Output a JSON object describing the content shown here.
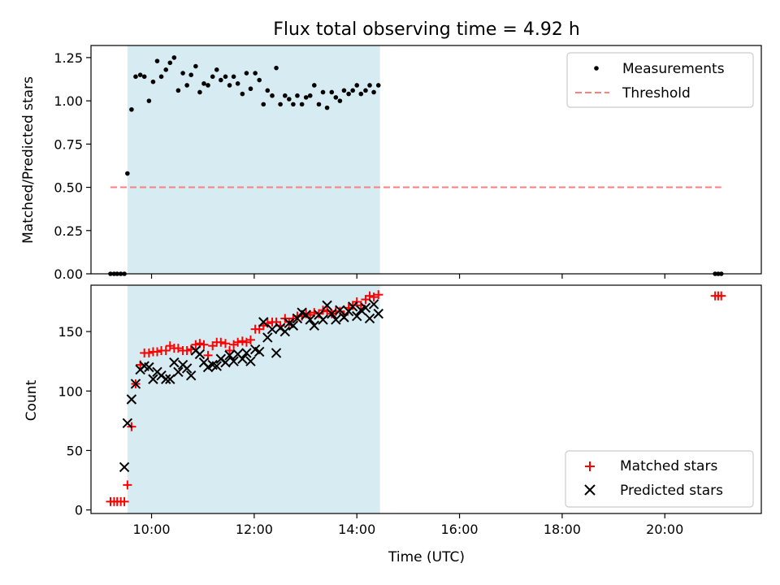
{
  "chart_data": [
    {
      "type": "scatter",
      "title": "Flux total observing time = 4.92 h",
      "ylabel": "Matched/Predicted stars",
      "xlabel": "",
      "ylim": [
        0,
        1.32
      ],
      "yticks": [
        0.0,
        0.25,
        0.5,
        0.75,
        1.0,
        1.25
      ],
      "ytick_labels": [
        "0.00",
        "0.25",
        "0.50",
        "0.75",
        "1.00",
        "1.25"
      ],
      "xlim": [
        8.82,
        21.88
      ],
      "xticks": [
        10,
        12,
        14,
        16,
        18,
        20
      ],
      "highlight_span": [
        9.53,
        14.45
      ],
      "legend_position": "upper right",
      "series": [
        {
          "name": "Measurements",
          "marker": "dot",
          "color": "#000000",
          "x": [
            9.2,
            9.27,
            9.33,
            9.4,
            9.47,
            9.53,
            9.61,
            9.69,
            9.78,
            9.86,
            9.95,
            10.03,
            10.11,
            10.19,
            10.28,
            10.36,
            10.44,
            10.52,
            10.61,
            10.69,
            10.77,
            10.86,
            10.94,
            11.02,
            11.1,
            11.19,
            11.27,
            11.35,
            11.44,
            11.52,
            11.6,
            11.68,
            11.77,
            11.85,
            11.93,
            12.02,
            12.1,
            12.18,
            12.26,
            12.35,
            12.43,
            12.51,
            12.6,
            12.68,
            12.76,
            12.84,
            12.93,
            13.01,
            13.09,
            13.17,
            13.26,
            13.34,
            13.42,
            13.51,
            13.59,
            13.67,
            13.75,
            13.84,
            13.92,
            14.0,
            14.08,
            14.17,
            14.25,
            14.33,
            14.42,
            20.98,
            21.04,
            21.1
          ],
          "y": [
            0,
            0,
            0,
            0,
            0,
            0.58,
            0.95,
            1.14,
            1.15,
            1.14,
            1.0,
            1.11,
            1.23,
            1.14,
            1.18,
            1.22,
            1.25,
            1.06,
            1.16,
            1.09,
            1.15,
            1.2,
            1.05,
            1.1,
            1.09,
            1.14,
            1.18,
            1.12,
            1.14,
            1.09,
            1.14,
            1.1,
            1.04,
            1.16,
            1.07,
            1.16,
            1.12,
            0.98,
            1.06,
            1.03,
            1.19,
            0.98,
            1.03,
            1.01,
            0.98,
            1.03,
            0.98,
            1.02,
            1.03,
            1.09,
            0.98,
            1.05,
            0.96,
            1.05,
            1.02,
            1.0,
            1.06,
            1.04,
            1.06,
            1.09,
            1.04,
            1.06,
            1.09,
            1.05,
            1.09,
            0,
            0,
            0
          ]
        },
        {
          "name": "Threshold",
          "marker": "dashed-line",
          "color": "#ff7f7f",
          "x": [
            9.2,
            21.1
          ],
          "y": [
            0.5,
            0.5
          ]
        }
      ]
    },
    {
      "type": "scatter",
      "title": "",
      "ylabel": "Count",
      "xlabel": "Time (UTC)",
      "ylim": [
        -3,
        189
      ],
      "yticks": [
        0,
        50,
        100,
        150
      ],
      "ytick_labels": [
        "0",
        "50",
        "100",
        "150"
      ],
      "xlim": [
        8.82,
        21.88
      ],
      "xticks": [
        10,
        12,
        14,
        16,
        18,
        20
      ],
      "xtick_labels": [
        "10:00",
        "12:00",
        "14:00",
        "16:00",
        "18:00",
        "20:00"
      ],
      "highlight_span": [
        9.53,
        14.45
      ],
      "legend_position": "lower right",
      "series": [
        {
          "name": "Matched stars",
          "marker": "plus",
          "color": "#ff0000",
          "x": [
            9.2,
            9.27,
            9.33,
            9.4,
            9.47,
            9.53,
            9.61,
            9.69,
            9.78,
            9.86,
            9.95,
            10.03,
            10.11,
            10.19,
            10.28,
            10.36,
            10.44,
            10.52,
            10.61,
            10.69,
            10.77,
            10.86,
            10.94,
            11.02,
            11.1,
            11.19,
            11.27,
            11.35,
            11.44,
            11.52,
            11.6,
            11.68,
            11.77,
            11.85,
            11.93,
            12.02,
            12.1,
            12.18,
            12.26,
            12.35,
            12.43,
            12.51,
            12.6,
            12.68,
            12.76,
            12.84,
            12.93,
            13.01,
            13.09,
            13.17,
            13.26,
            13.34,
            13.42,
            13.51,
            13.59,
            13.67,
            13.75,
            13.84,
            13.92,
            14.0,
            14.08,
            14.17,
            14.25,
            14.33,
            14.42,
            20.98,
            21.04,
            21.1
          ],
          "y": [
            7,
            7,
            7,
            7,
            7,
            21,
            70,
            106,
            122,
            132,
            132,
            133,
            133,
            134,
            134,
            138,
            136,
            136,
            134,
            134,
            135,
            139,
            140,
            139,
            130,
            138,
            141,
            141,
            140,
            134,
            139,
            141,
            142,
            141,
            143,
            152,
            152,
            155,
            157,
            158,
            158,
            155,
            161,
            158,
            161,
            163,
            163,
            165,
            164,
            166,
            165,
            168,
            167,
            165,
            167,
            167,
            164,
            170,
            172,
            175,
            172,
            177,
            180,
            179,
            181,
            180,
            180,
            180
          ]
        },
        {
          "name": "Predicted stars",
          "marker": "x",
          "color": "#000000",
          "x": [
            9.47,
            9.53,
            9.61,
            9.69,
            9.78,
            9.86,
            9.95,
            10.03,
            10.11,
            10.19,
            10.28,
            10.36,
            10.44,
            10.52,
            10.61,
            10.69,
            10.77,
            10.86,
            10.94,
            11.02,
            11.1,
            11.19,
            11.27,
            11.35,
            11.44,
            11.52,
            11.6,
            11.68,
            11.77,
            11.85,
            11.93,
            12.02,
            12.1,
            12.18,
            12.26,
            12.35,
            12.43,
            12.51,
            12.6,
            12.68,
            12.76,
            12.84,
            12.93,
            13.01,
            13.09,
            13.17,
            13.26,
            13.34,
            13.42,
            13.51,
            13.59,
            13.67,
            13.75,
            13.84,
            13.92,
            14.0,
            14.08,
            14.17,
            14.25,
            14.33,
            14.42
          ],
          "y": [
            36,
            73,
            93,
            106,
            118,
            121,
            120,
            110,
            116,
            113,
            110,
            110,
            124,
            116,
            122,
            119,
            113,
            134,
            131,
            124,
            120,
            122,
            121,
            127,
            124,
            130,
            125,
            131,
            127,
            132,
            125,
            135,
            133,
            158,
            145,
            152,
            132,
            153,
            150,
            157,
            155,
            161,
            166,
            164,
            160,
            155,
            164,
            160,
            172,
            165,
            160,
            168,
            162,
            167,
            171,
            163,
            168,
            170,
            161,
            173,
            165
          ]
        }
      ]
    }
  ]
}
